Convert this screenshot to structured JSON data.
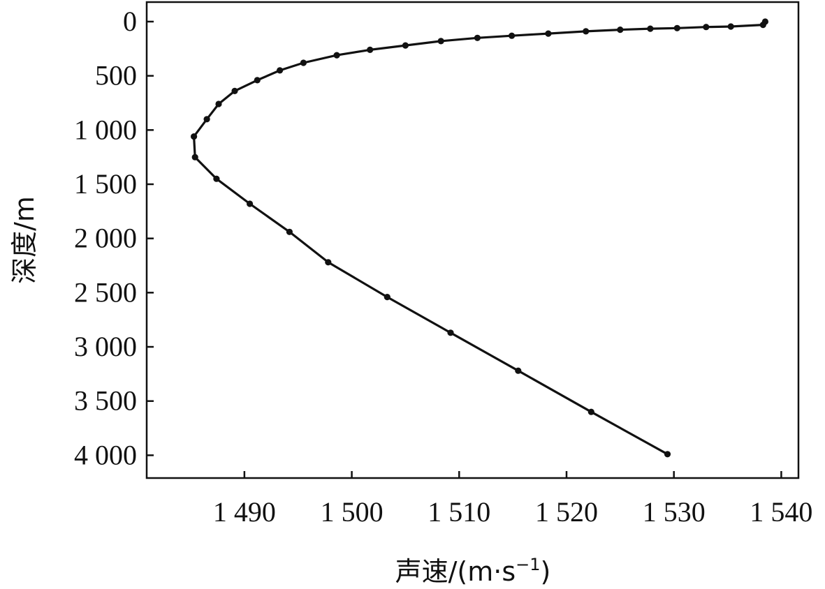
{
  "chart_data": {
    "type": "line",
    "title": "",
    "xlabel": "声速/(m·s",
    "xlabel_sup": "−1",
    "xlabel_end": ")",
    "ylabel": "深度/m",
    "xlim": [
      1480.9,
      1541.6
    ],
    "ylim": [
      4210,
      -180
    ],
    "y_inverted": true,
    "x_ticks": [
      1490,
      1500,
      1510,
      1520,
      1530,
      1540
    ],
    "x_tick_labels": [
      "1 490",
      "1 500",
      "1 510",
      "1 520",
      "1 530",
      "1 540"
    ],
    "y_ticks": [
      0,
      500,
      1000,
      1500,
      2000,
      2500,
      3000,
      3500,
      4000
    ],
    "y_tick_labels": [
      "0",
      "500",
      "1 000",
      "1 500",
      "2 000",
      "2 500",
      "3 000",
      "3 500",
      "4 000"
    ],
    "grid": false,
    "legend": "none",
    "series": [
      {
        "markers": true,
        "x": [
          1538.5,
          1538.3,
          1535.3,
          1533.0,
          1530.3,
          1527.8,
          1525.0,
          1521.8,
          1518.3,
          1514.9,
          1511.7,
          1508.3,
          1505.0,
          1501.7,
          1498.6,
          1495.5,
          1493.3,
          1491.2,
          1489.1,
          1487.6,
          1486.5,
          1485.3,
          1485.4,
          1487.4,
          1490.5,
          1494.2,
          1497.8,
          1503.3,
          1509.2,
          1515.5,
          1522.3,
          1529.4
        ],
        "y": [
          0,
          30,
          45,
          50,
          60,
          65,
          75,
          90,
          110,
          130,
          150,
          180,
          220,
          260,
          310,
          380,
          450,
          540,
          640,
          760,
          900,
          1060,
          1250,
          1450,
          1680,
          1940,
          2220,
          2540,
          2870,
          3220,
          3600,
          3990
        ]
      }
    ]
  }
}
